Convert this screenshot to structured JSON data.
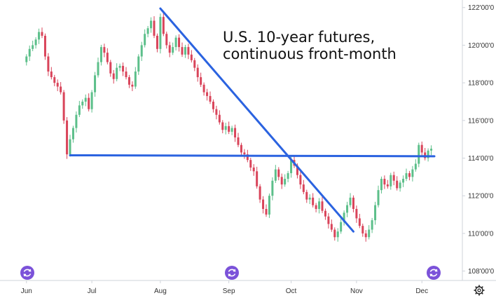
{
  "chart_data": {
    "type": "candlestick",
    "title_lines": [
      "U.S. 10-year futures,",
      "continuous front-month"
    ],
    "xlabel": "",
    "ylabel": "",
    "ylim": [
      107.5,
      122.4
    ],
    "y_ticks": [
      {
        "value": 108,
        "label": "108'00'0"
      },
      {
        "value": 110,
        "label": "110'00'0"
      },
      {
        "value": 112,
        "label": "112'00'0"
      },
      {
        "value": 114,
        "label": "114'00'0"
      },
      {
        "value": 116,
        "label": "116'00'0"
      },
      {
        "value": 118,
        "label": "118'00'0"
      },
      {
        "value": 120,
        "label": "120'00'0"
      },
      {
        "value": 122,
        "label": "122'00'0"
      }
    ],
    "x_ticks": [
      {
        "value": 0,
        "label": "Jun"
      },
      {
        "value": 21,
        "label": "Jul"
      },
      {
        "value": 43,
        "label": "Aug"
      },
      {
        "value": 65,
        "label": "Sep"
      },
      {
        "value": 85,
        "label": "Oct"
      },
      {
        "value": 106,
        "label": "Nov"
      },
      {
        "value": 127,
        "label": "Dec"
      }
    ],
    "x_range": [
      -8.5,
      140
    ],
    "grid": false,
    "up_color": "#5cbf8a",
    "down_color": "#d9445a",
    "trendline_color": "#2b63e0",
    "closes": [
      119.4,
      119.8,
      120.0,
      120.3,
      120.7,
      120.5,
      119.4,
      118.6,
      118.3,
      118.0,
      117.8,
      117.5,
      116.0,
      114.2,
      115.0,
      115.6,
      116.3,
      116.8,
      117.0,
      117.2,
      116.6,
      117.5,
      118.4,
      119.1,
      119.9,
      119.6,
      119.1,
      118.5,
      118.2,
      118.8,
      118.9,
      118.6,
      118.3,
      117.9,
      117.8,
      118.6,
      119.4,
      120.0,
      120.6,
      120.9,
      121.3,
      120.5,
      119.8,
      121.5,
      120.6,
      120.0,
      119.6,
      119.9,
      120.4,
      119.9,
      119.5,
      119.9,
      119.5,
      119.2,
      118.8,
      118.3,
      117.9,
      117.5,
      117.3,
      117.0,
      116.6,
      116.3,
      115.9,
      115.5,
      115.7,
      115.4,
      115.6,
      115.1,
      114.7,
      114.3,
      114.2,
      113.9,
      113.5,
      113.3,
      112.5,
      111.8,
      111.3,
      111.0,
      112.0,
      112.8,
      113.4,
      113.0,
      112.6,
      112.9,
      113.2,
      113.9,
      113.6,
      113.1,
      112.6,
      112.2,
      111.8,
      111.9,
      111.5,
      111.3,
      111.7,
      111.2,
      110.9,
      110.5,
      110.2,
      109.8,
      110.1,
      110.6,
      111.1,
      111.5,
      111.9,
      111.3,
      110.8,
      110.4,
      110.0,
      109.8,
      110.2,
      110.7,
      111.5,
      112.3,
      112.9,
      112.6,
      112.5,
      113.1,
      112.8,
      112.4,
      112.7,
      112.9,
      113.2,
      113.0,
      113.4,
      113.7,
      114.7,
      114.3,
      114.0,
      114.4,
      114.5
    ]
  }
}
